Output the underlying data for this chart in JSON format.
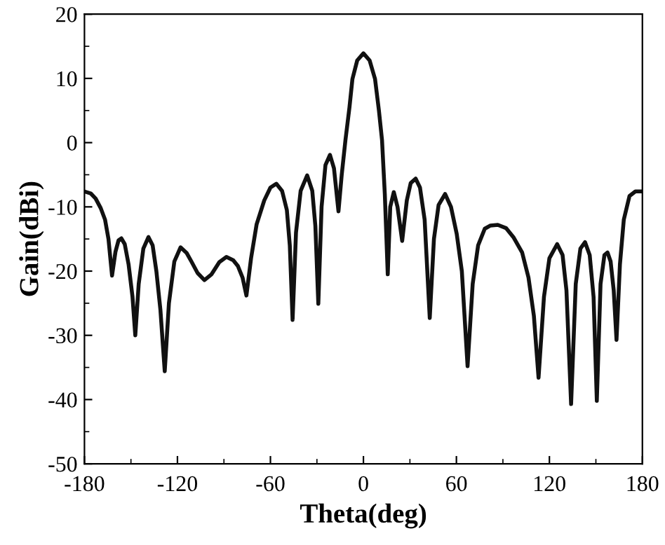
{
  "chart_data": {
    "type": "line",
    "xlabel": "Theta(deg)",
    "ylabel": "Gain(dBi)",
    "xlim": [
      -180,
      180
    ],
    "ylim": [
      -50,
      20
    ],
    "xticks": [
      -180,
      {
        "value": -150,
        "label": null
      },
      -120,
      {
        "value": -90,
        "label": null
      },
      -60,
      {
        "value": -30,
        "label": null
      },
      0,
      {
        "value": 30,
        "label": null
      },
      60,
      {
        "value": 90,
        "label": null
      },
      120,
      {
        "value": 150,
        "label": null
      },
      180
    ],
    "yticks": [
      -50,
      {
        "value": -45,
        "label": null
      },
      -40,
      {
        "value": -35,
        "label": null
      },
      -30,
      {
        "value": -25,
        "label": null
      },
      -20,
      {
        "value": -15,
        "label": null
      },
      -10,
      {
        "value": -5,
        "label": null
      },
      0,
      {
        "value": 5,
        "label": null
      },
      10,
      {
        "value": 15,
        "label": null
      },
      20
    ],
    "grid": false,
    "legend": false,
    "marker": "none",
    "line_style": "solid",
    "series": [
      {
        "color": "#111111",
        "x": [
          -180,
          -176,
          -172.8,
          -169.5,
          -166.7,
          -164.5,
          -162.2,
          -160,
          -158,
          -156.2,
          -154,
          -151.5,
          -149,
          -147.2,
          -145,
          -142,
          -138.7,
          -136,
          -133.6,
          -131,
          -128.2,
          -125.5,
          -122,
          -118,
          -114,
          -111,
          -107,
          -102.6,
          -98,
          -93,
          -88.4,
          -84,
          -81,
          -78,
          -75.5,
          -72.5,
          -68.9,
          -64,
          -60,
          -56.2,
          -52.5,
          -49.4,
          -47.5,
          -45.7,
          -43.5,
          -40.5,
          -36.3,
          -33,
          -31,
          -29.1,
          -27,
          -24.5,
          -21.6,
          -19,
          -16.1,
          -14,
          -11.6,
          -9,
          -7.1,
          -4,
          0,
          4,
          7.5,
          10,
          12,
          13.8,
          15.7,
          17.3,
          19.6,
          22,
          25,
          28,
          30.5,
          33.7,
          36.5,
          39.5,
          42.8,
          45.5,
          48.5,
          52.7,
          56.5,
          60.2,
          63.5,
          67.2,
          70.5,
          74,
          78.3,
          82,
          86.7,
          92,
          97,
          102.4,
          106.5,
          110,
          113,
          116.5,
          120,
          125,
          128.5,
          131,
          134,
          137,
          140,
          143,
          146,
          148.5,
          150.6,
          153,
          155.5,
          157.5,
          159.5,
          161.5,
          163.3,
          165.5,
          168,
          171.7,
          175.5,
          180
        ],
        "values": [
          -7.6,
          -7.9,
          -8.7,
          -10.2,
          -12.0,
          -15,
          -20.7,
          -17,
          -15.2,
          -14.9,
          -15.8,
          -19,
          -24,
          -30,
          -22,
          -16.5,
          -14.7,
          -16,
          -20,
          -26,
          -35.6,
          -25,
          -18.5,
          -16.3,
          -17.2,
          -18.5,
          -20.3,
          -21.4,
          -20.5,
          -18.6,
          -17.8,
          -18.3,
          -19.2,
          -21,
          -23.8,
          -18,
          -12.7,
          -9,
          -7,
          -6.4,
          -7.5,
          -10.5,
          -16,
          -27.6,
          -14,
          -7.5,
          -5.1,
          -7.5,
          -13,
          -25.1,
          -10,
          -3.5,
          -1.9,
          -4,
          -10.7,
          -5,
          0.4,
          5.5,
          9.9,
          12.8,
          13.9,
          12.8,
          9.9,
          5,
          0.4,
          -8,
          -20.5,
          -10,
          -7.7,
          -10,
          -15.3,
          -9,
          -6.3,
          -5.6,
          -7,
          -12,
          -27.3,
          -15,
          -9.7,
          -8.0,
          -10,
          -14.2,
          -20,
          -34.8,
          -22,
          -16,
          -13.4,
          -12.9,
          -12.8,
          -13.3,
          -14.8,
          -17.1,
          -21,
          -27,
          -36.6,
          -24,
          -18,
          -15.8,
          -17.5,
          -23,
          -40.7,
          -22,
          -16.5,
          -15.5,
          -17.5,
          -24,
          -40.2,
          -22,
          -17.5,
          -17.1,
          -18.5,
          -23,
          -30.7,
          -19,
          -12,
          -8.3,
          -7.6,
          -7.6
        ]
      }
    ]
  }
}
